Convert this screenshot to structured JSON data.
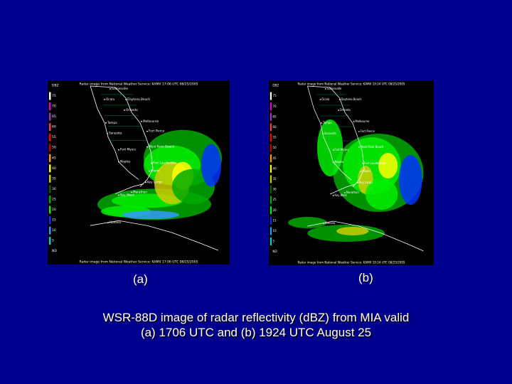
{
  "panels": [
    {
      "label": "(a)",
      "header": "Radar image from National Weather Service: KAMX  17:06 UTC  08/25/2005",
      "footer": "Radar image from National Weather Service: KAMX  17:06 UTC  08/25/2005"
    },
    {
      "label": "(b)",
      "header": "Radar image from National Weather Service: KAMX  19:24 UTC  08/25/2005",
      "footer": "Radar image from National Weather Service: KAMX  19:24 UTC  08/25/2005"
    }
  ],
  "legend": [
    "DBZ",
    "75",
    "70",
    "65",
    "60",
    "55",
    "50",
    "45",
    "40",
    "35",
    "30",
    "25",
    "20",
    "15",
    "10",
    "5",
    "ND"
  ],
  "cities": [
    "Gainesville",
    "Ocala",
    "Daytona Beach",
    "Orlando",
    "Tampa",
    "Melbourne",
    "Sarasota",
    "Fort Pierce",
    "Fort Myers",
    "West Palm Beach",
    "Naples",
    "Fort Lauderdale",
    "Miami",
    "Key Largo",
    "Marathon",
    "Key West",
    "Havana"
  ],
  "caption": [
    "WSR-88D image of radar reflectivity (dBZ) from MIA valid",
    "(a) 1706 UTC and (b) 1924 UTC August 25"
  ]
}
